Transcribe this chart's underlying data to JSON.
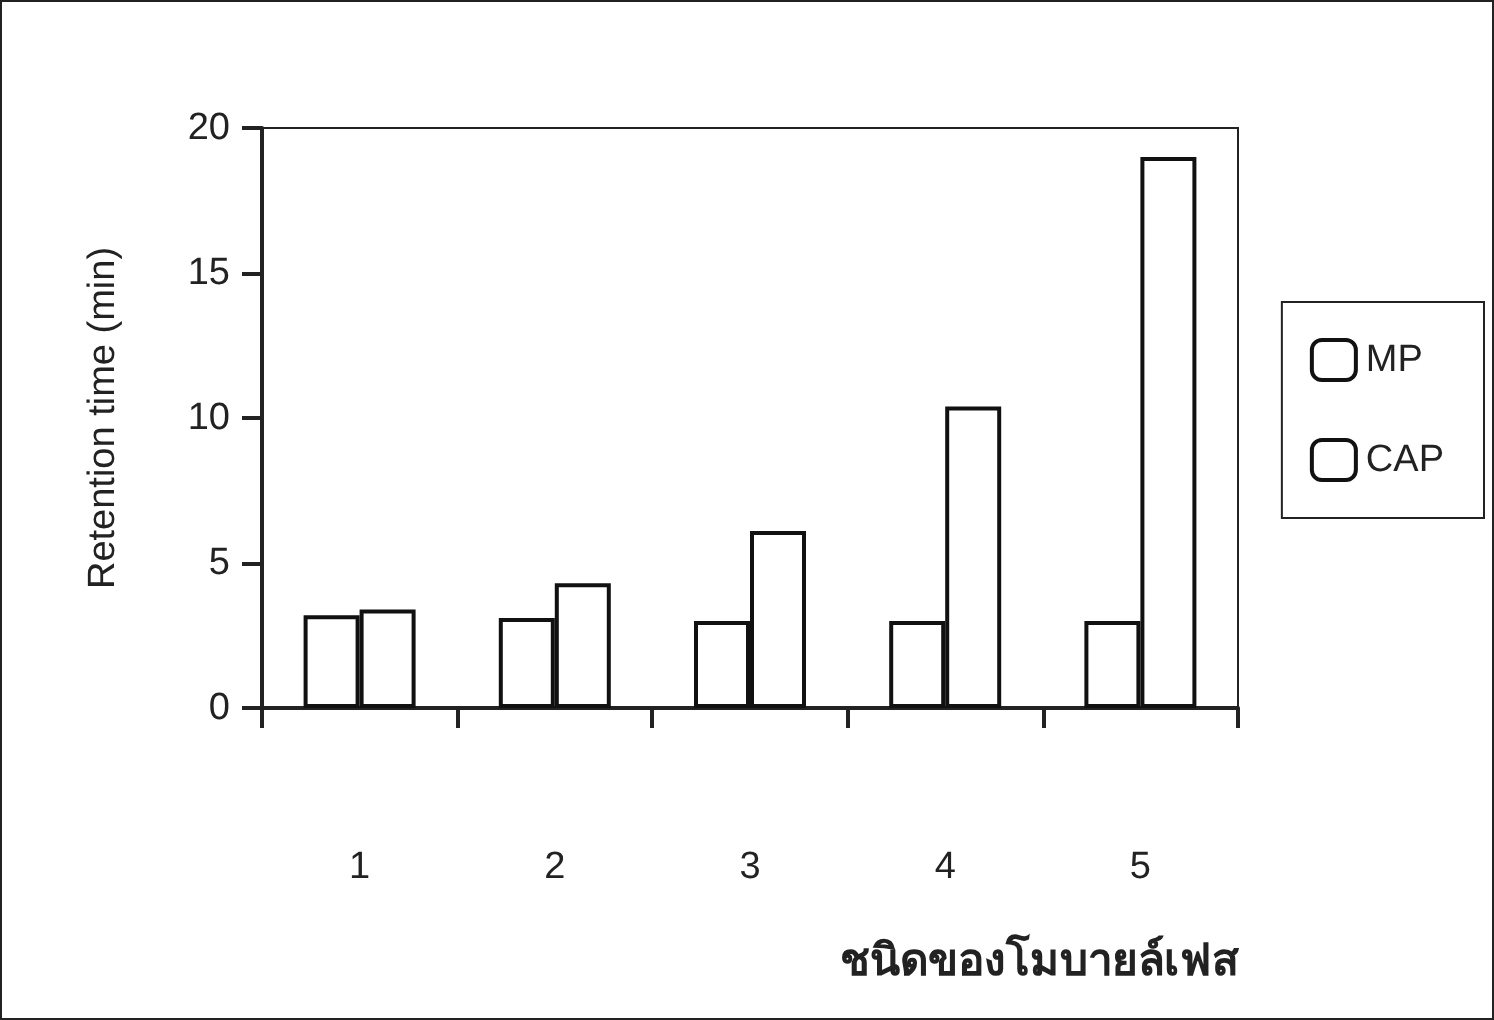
{
  "chart_data": {
    "type": "bar",
    "ylabel": "Retention time (min)",
    "xlabel": "ชนิดของโมบายล์เฟส",
    "categories": [
      "1",
      "2",
      "3",
      "4",
      "5"
    ],
    "series": [
      {
        "name": "MP",
        "color": "#ffffff",
        "values": [
          3.2,
          3.1,
          3.0,
          3.0,
          3.0
        ]
      },
      {
        "name": "CAP",
        "color": "#ffffff",
        "values": [
          3.4,
          4.3,
          6.1,
          10.4,
          19.0
        ]
      }
    ],
    "ylim": [
      0,
      20
    ],
    "yticks": [
      0,
      5,
      10,
      15,
      20
    ],
    "grid": false,
    "legend": "right"
  }
}
